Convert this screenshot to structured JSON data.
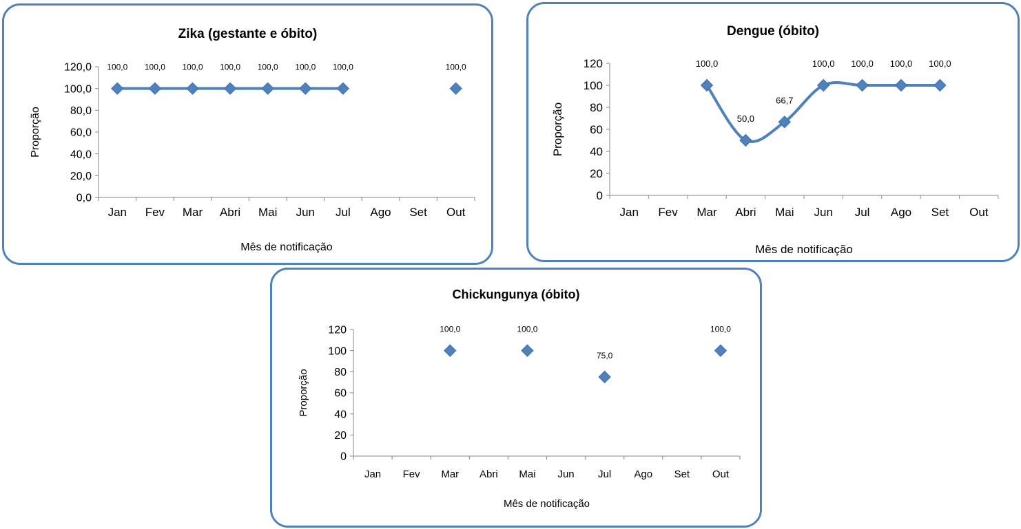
{
  "chart_data": [
    {
      "type": "line",
      "title": "Zika (gestante e óbito)",
      "xlabel": "Mês de notificação",
      "ylabel": "Proporção",
      "categories": [
        "Jan",
        "Fev",
        "Mar",
        "Abri",
        "Mai",
        "Jun",
        "Jul",
        "Ago",
        "Set",
        "Out"
      ],
      "y_ticks": [
        "0,0",
        "20,0",
        "40,0",
        "60,0",
        "80,0",
        "100,0",
        "120,0"
      ],
      "ylim": [
        0,
        120
      ],
      "smooth": false,
      "series": [
        {
          "values": [
            100,
            100,
            100,
            100,
            100,
            100,
            100,
            null,
            null,
            100
          ],
          "labels": [
            "100,0",
            "100,0",
            "100,0",
            "100,0",
            "100,0",
            "100,0",
            "100,0",
            "",
            "",
            "100,0"
          ]
        }
      ],
      "color": "#4f81bd",
      "grid": false,
      "legend": "none"
    },
    {
      "type": "line",
      "title": "Dengue (óbito)",
      "xlabel": "Mês de notificação",
      "ylabel": "Proporção",
      "categories": [
        "Jan",
        "Fev",
        "Mar",
        "Abri",
        "Mai",
        "Jun",
        "Jul",
        "Ago",
        "Set",
        "Out"
      ],
      "y_ticks": [
        "0",
        "20",
        "40",
        "60",
        "80",
        "100",
        "120"
      ],
      "ylim": [
        0,
        120
      ],
      "smooth": true,
      "series": [
        {
          "values": [
            null,
            null,
            100,
            50,
            66.7,
            100,
            100,
            100,
            100,
            null
          ],
          "labels": [
            "",
            "",
            "100,0",
            "50,0",
            "66,7",
            "100,0",
            "100,0",
            "100,0",
            "100,0",
            ""
          ]
        }
      ],
      "color": "#4f81bd",
      "grid": false,
      "legend": "none"
    },
    {
      "type": "scatter",
      "title": "Chickungunya (óbito)",
      "xlabel": "Mês de notificação",
      "ylabel": "Proporção",
      "categories": [
        "Jan",
        "Fev",
        "Mar",
        "Abri",
        "Mai",
        "Jun",
        "Jul",
        "Ago",
        "Set",
        "Out"
      ],
      "y_ticks": [
        "0",
        "20",
        "40",
        "60",
        "80",
        "100",
        "120"
      ],
      "ylim": [
        0,
        120
      ],
      "smooth": false,
      "series": [
        {
          "values": [
            null,
            null,
            100,
            null,
            100,
            null,
            75,
            null,
            null,
            100
          ],
          "labels": [
            "",
            "",
            "100,0",
            "",
            "100,0",
            "",
            "75,0",
            "",
            "",
            "100,0"
          ]
        }
      ],
      "color": "#4f81bd",
      "grid": false,
      "legend": "none"
    }
  ]
}
